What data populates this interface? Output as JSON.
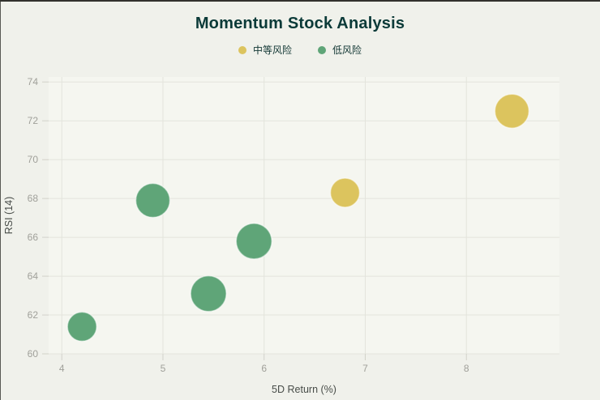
{
  "page": {
    "title": "Momentum Stock Analysis"
  },
  "legend": {
    "items": [
      {
        "label": "中等风险",
        "color": "#dcc45e"
      },
      {
        "label": "低风险",
        "color": "#5fa578"
      }
    ]
  },
  "chart_data": {
    "type": "scatter",
    "title": "Momentum Stock Analysis",
    "xlabel": "5D Return (%)",
    "ylabel": "RSI (14)",
    "xlim": [
      3.87,
      8.92
    ],
    "ylim": [
      60,
      74.26
    ],
    "xticks": [
      4,
      5,
      6,
      7,
      8
    ],
    "yticks": [
      60,
      62,
      64,
      66,
      68,
      70,
      72,
      74
    ],
    "grid": true,
    "legend_position": "top-center",
    "series": [
      {
        "name": "中等风险",
        "color": "#dcc45e",
        "points": [
          {
            "x": 6.8,
            "y": 68.3,
            "r": 18
          },
          {
            "x": 8.45,
            "y": 72.5,
            "r": 21
          }
        ]
      },
      {
        "name": "低风险",
        "color": "#5fa578",
        "points": [
          {
            "x": 4.2,
            "y": 61.4,
            "r": 18
          },
          {
            "x": 4.9,
            "y": 67.9,
            "r": 21
          },
          {
            "x": 5.45,
            "y": 63.1,
            "r": 22
          },
          {
            "x": 5.9,
            "y": 65.8,
            "r": 22
          }
        ]
      }
    ]
  },
  "colors": {
    "background": "#f0f1eb",
    "plot_background": "#f5f6f0",
    "gridline": "#e3e4dc",
    "tick": "#d2d2ca",
    "tick_label": "#a0a09a",
    "axis_title": "#474c48",
    "title": "#0b3a38",
    "legend_label": "#123734",
    "frame_edge": "#32322d",
    "bubble_stroke": "rgba(255,255,255,0.5)"
  }
}
